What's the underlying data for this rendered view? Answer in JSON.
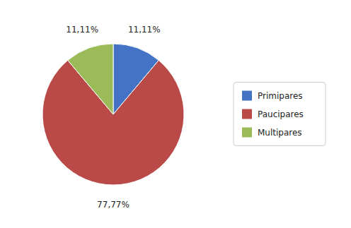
{
  "chart_data": {
    "type": "pie",
    "categories": [
      "Primipares",
      "Paucipares",
      "Multipares"
    ],
    "values": [
      11.11,
      77.77,
      11.11
    ],
    "value_labels": [
      "11,11%",
      "77,77%",
      "11,11%"
    ],
    "colors": [
      "#4472C4",
      "#B94A48",
      "#9BBB59"
    ],
    "data_labels": true,
    "legend": "right"
  }
}
